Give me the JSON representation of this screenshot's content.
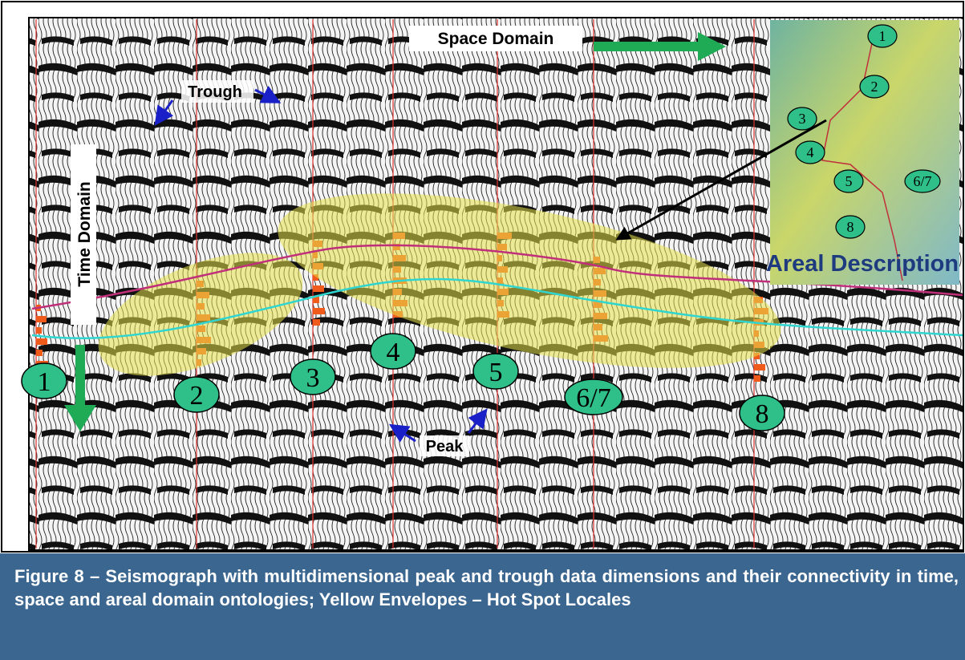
{
  "figure": {
    "labels": {
      "space_domain": "Space Domain",
      "time_domain": "Time Domain",
      "trough": "Trough",
      "peak": "Peak",
      "areal_description": "Areal Description"
    },
    "wells": [
      "1",
      "2",
      "3",
      "4",
      "5",
      "6/7",
      "8"
    ],
    "inset_wells": [
      "1",
      "2",
      "3",
      "4",
      "5",
      "6/7",
      "8"
    ],
    "caption": "Figure 8 – Seismograph with multidimensional peak and trough data dimensions and their connectivity in time, space and areal domain ontologies; Yellow Envelopes – Hot Spot Locales"
  }
}
